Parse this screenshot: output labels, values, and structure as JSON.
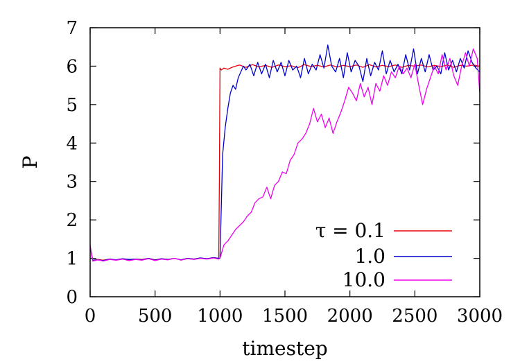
{
  "chart_data": {
    "type": "line",
    "title": "",
    "xlabel": "timestep",
    "ylabel": "P",
    "xlim": [
      0,
      3000
    ],
    "ylim": [
      0,
      7
    ],
    "xticks": [
      0,
      500,
      1000,
      1500,
      2000,
      2500,
      3000
    ],
    "yticks": [
      0,
      1,
      2,
      3,
      4,
      5,
      6,
      7
    ],
    "grid": false,
    "legend_position": "bottom-right",
    "series": [
      {
        "name": "τ = 0.1",
        "color": "#e8000b",
        "x": [
          0,
          20,
          60,
          100,
          150,
          200,
          250,
          300,
          350,
          400,
          450,
          500,
          550,
          600,
          650,
          700,
          750,
          800,
          850,
          900,
          950,
          990,
          995,
          1000,
          1010,
          1030,
          1060,
          1100,
          1150,
          1200,
          1250,
          1300,
          1350,
          1400,
          1450,
          1500,
          1550,
          1600,
          1650,
          1700,
          1750,
          1800,
          1850,
          1900,
          1950,
          2000,
          2050,
          2100,
          2150,
          2200,
          2250,
          2300,
          2350,
          2400,
          2450,
          2500,
          2550,
          2600,
          2650,
          2700,
          2750,
          2800,
          2850,
          2900,
          2950,
          3000
        ],
        "y": [
          1.3,
          0.95,
          0.97,
          0.95,
          0.98,
          0.96,
          0.99,
          0.96,
          0.98,
          0.97,
          1.0,
          0.96,
          0.99,
          0.97,
          1.0,
          0.96,
          1.0,
          0.98,
          1.01,
          0.99,
          1.02,
          1.0,
          3.0,
          5.95,
          5.9,
          5.95,
          5.92,
          5.98,
          6.03,
          5.97,
          6.04,
          5.98,
          6.02,
          5.97,
          6.03,
          5.99,
          6.01,
          5.96,
          6.04,
          5.99,
          6.02,
          5.98,
          6.03,
          5.98,
          6.02,
          5.99,
          6.03,
          5.97,
          6.04,
          5.98,
          6.02,
          5.99,
          6.03,
          5.97,
          6.02,
          6.0,
          6.03,
          5.98,
          6.02,
          5.99,
          6.03,
          5.97,
          6.02,
          6.0,
          6.03,
          6.0
        ]
      },
      {
        "name": "1.0",
        "color": "#0000cc",
        "x": [
          0,
          20,
          60,
          100,
          150,
          200,
          250,
          300,
          350,
          400,
          450,
          500,
          550,
          600,
          650,
          700,
          750,
          800,
          850,
          900,
          950,
          990,
          1000,
          1020,
          1040,
          1060,
          1080,
          1100,
          1120,
          1140,
          1160,
          1180,
          1200,
          1230,
          1260,
          1290,
          1320,
          1350,
          1380,
          1410,
          1440,
          1470,
          1500,
          1530,
          1560,
          1590,
          1620,
          1650,
          1680,
          1710,
          1740,
          1770,
          1800,
          1830,
          1860,
          1890,
          1920,
          1950,
          1980,
          2010,
          2040,
          2070,
          2100,
          2130,
          2160,
          2190,
          2220,
          2250,
          2280,
          2310,
          2340,
          2370,
          2400,
          2430,
          2460,
          2490,
          2520,
          2550,
          2580,
          2610,
          2640,
          2670,
          2700,
          2730,
          2760,
          2790,
          2820,
          2850,
          2880,
          2910,
          2940,
          2970,
          3000
        ],
        "y": [
          1.3,
          0.95,
          0.96,
          0.94,
          0.98,
          0.96,
          0.99,
          0.97,
          0.98,
          0.96,
          1.0,
          0.95,
          0.99,
          0.97,
          1.0,
          0.96,
          1.0,
          0.98,
          1.01,
          0.99,
          1.02,
          1.0,
          1.0,
          3.7,
          4.4,
          4.9,
          5.3,
          5.5,
          5.4,
          5.7,
          5.85,
          6.0,
          5.9,
          6.05,
          5.75,
          6.1,
          5.8,
          6.05,
          5.7,
          6.15,
          5.85,
          6.1,
          5.75,
          6.15,
          5.9,
          6.0,
          5.7,
          6.2,
          5.8,
          6.05,
          5.9,
          6.3,
          5.95,
          6.55,
          6.0,
          5.85,
          6.2,
          5.7,
          6.35,
          5.85,
          6.15,
          6.0,
          5.6,
          6.2,
          5.75,
          6.1,
          5.9,
          6.4,
          5.8,
          6.15,
          5.85,
          6.05,
          5.8,
          6.3,
          5.9,
          6.45,
          5.8,
          6.2,
          5.85,
          6.3,
          5.9,
          6.0,
          5.8,
          6.35,
          5.9,
          6.15,
          5.85,
          6.2,
          5.95,
          6.4,
          6.1,
          5.95,
          5.85
        ]
      },
      {
        "name": "10.0",
        "color": "#ee00ee",
        "x": [
          0,
          20,
          60,
          100,
          150,
          200,
          250,
          300,
          350,
          400,
          450,
          500,
          550,
          600,
          650,
          700,
          750,
          800,
          850,
          900,
          950,
          990,
          1000,
          1030,
          1060,
          1090,
          1120,
          1150,
          1180,
          1210,
          1240,
          1270,
          1300,
          1330,
          1360,
          1390,
          1420,
          1450,
          1480,
          1510,
          1540,
          1570,
          1600,
          1630,
          1660,
          1690,
          1720,
          1750,
          1780,
          1810,
          1840,
          1870,
          1900,
          1930,
          1960,
          1990,
          2020,
          2050,
          2080,
          2110,
          2140,
          2170,
          2200,
          2230,
          2260,
          2290,
          2320,
          2350,
          2380,
          2410,
          2440,
          2470,
          2500,
          2530,
          2560,
          2590,
          2620,
          2650,
          2680,
          2710,
          2740,
          2770,
          2800,
          2830,
          2860,
          2890,
          2920,
          2950,
          2980,
          3000
        ],
        "y": [
          1.35,
          0.93,
          0.96,
          0.93,
          0.97,
          0.95,
          0.98,
          0.94,
          0.97,
          0.95,
          0.99,
          0.94,
          0.98,
          0.96,
          1.0,
          0.95,
          0.99,
          0.97,
          1.0,
          0.98,
          1.01,
          0.98,
          1.0,
          1.35,
          1.45,
          1.6,
          1.75,
          1.85,
          1.95,
          2.1,
          2.2,
          2.45,
          2.55,
          2.6,
          2.85,
          2.55,
          2.9,
          3.0,
          3.25,
          3.2,
          3.55,
          3.7,
          4.0,
          4.1,
          4.25,
          4.5,
          4.9,
          4.55,
          4.75,
          4.4,
          4.65,
          4.25,
          4.55,
          4.8,
          5.1,
          5.45,
          5.3,
          5.1,
          5.55,
          5.2,
          5.45,
          5.0,
          5.55,
          5.35,
          5.75,
          5.5,
          5.85,
          5.7,
          6.0,
          5.8,
          5.95,
          5.7,
          6.05,
          5.5,
          5.0,
          5.4,
          5.7,
          6.0,
          5.8,
          6.3,
          5.9,
          6.2,
          5.75,
          5.5,
          6.0,
          6.35,
          6.0,
          6.45,
          6.2,
          5.3
        ]
      }
    ]
  }
}
